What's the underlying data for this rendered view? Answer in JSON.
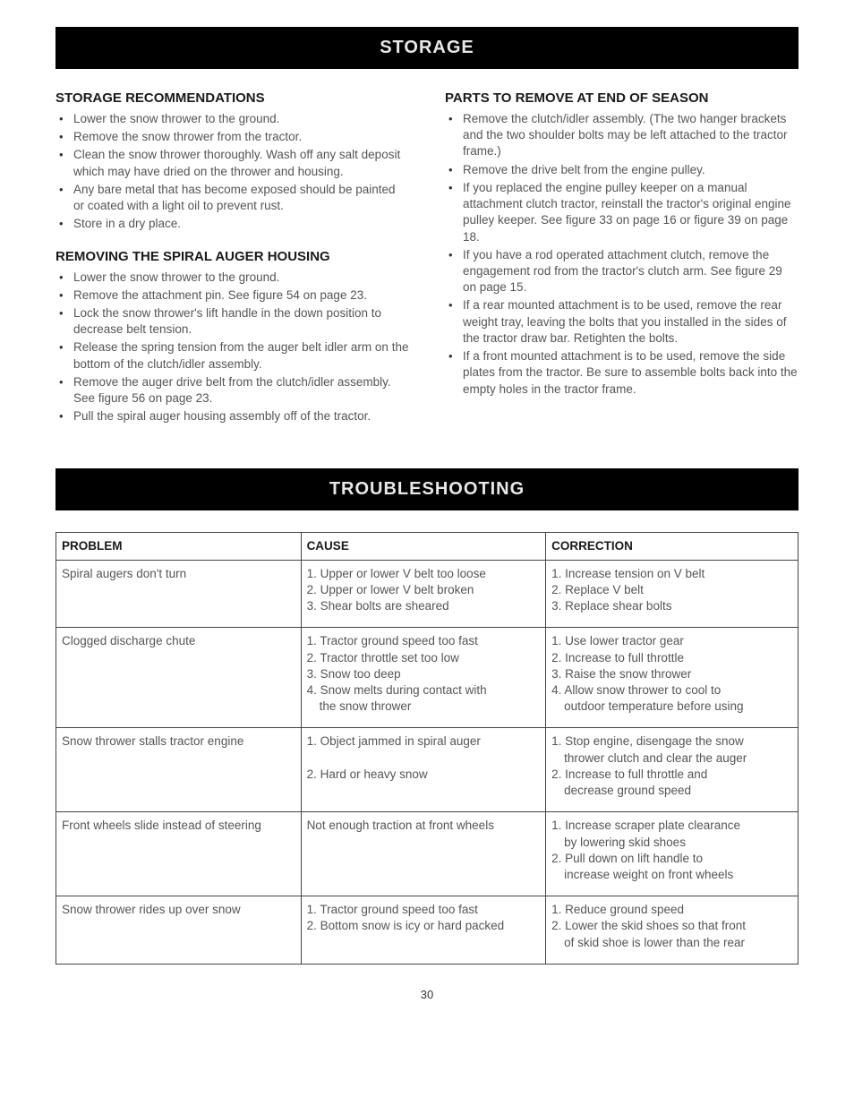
{
  "banner1": "STORAGE",
  "banner2": "TROUBLESHOOTING",
  "page_number": "30",
  "left_column": {
    "sec1": {
      "heading": "STORAGE RECOMMENDATIONS",
      "items": [
        "Lower the snow thrower to the ground.",
        "Remove the snow thrower from the tractor.",
        "Clean the snow thrower thoroughly. Wash off any salt deposit which may have dried on the thrower and housing.",
        "Any bare metal that has become exposed should be painted or coated with a light oil to prevent rust.",
        "Store in a dry place."
      ]
    },
    "sec2": {
      "heading": "REMOVING THE SPIRAL AUGER HOUSING",
      "items": [
        "Lower the snow thrower to the ground.",
        "Remove the attachment pin. See figure 54 on page 23.",
        "Lock the snow thrower's lift handle in the down position to decrease belt tension.",
        "Release the spring tension from the auger belt idler arm on the bottom of the clutch/idler assembly.",
        "Remove the auger drive belt from the clutch/idler assembly. See figure 56 on page 23.",
        "Pull the spiral auger housing assembly off of the tractor."
      ]
    }
  },
  "right_column": {
    "sec1": {
      "heading": "PARTS TO REMOVE AT END OF SEASON",
      "items": [
        "Remove the clutch/idler assembly. (The two hanger brackets and the two shoulder bolts may be left attached to the tractor frame.)",
        "Remove the drive belt from the engine pulley.",
        "If you replaced the engine pulley keeper on a manual attachment clutch tractor, reinstall the tractor's original engine pulley keeper. See figure 33 on page 16 or figure 39 on page 18.",
        "If you have a rod operated attachment clutch, remove the engagement rod from the tractor's clutch arm. See figure 29 on page 15.",
        "If a rear mounted attachment is to be used, remove the rear weight tray, leaving the bolts that you installed in the sides of the tractor draw bar. Retighten the bolts.",
        "If a front mounted attachment is to be used, remove the side plates from the tractor. Be sure to assemble bolts back into the empty holes in the tractor frame."
      ]
    }
  },
  "table": {
    "headers": {
      "problem": "PROBLEM",
      "cause": "CAUSE",
      "correction": "CORRECTION"
    },
    "rows": [
      {
        "problem": [
          "Spiral augers don't turn"
        ],
        "cause": [
          "1. Upper or lower V belt too loose",
          "2. Upper or lower V belt broken",
          "3. Shear bolts are sheared"
        ],
        "correction": [
          "1. Increase tension on V belt",
          "2. Replace V belt",
          "3. Replace shear bolts"
        ]
      },
      {
        "problem": [
          "Clogged discharge chute"
        ],
        "cause": [
          "1. Tractor ground speed too fast",
          "2. Tractor throttle set too low",
          "3. Snow too deep",
          "4. Snow melts during contact with",
          "    the snow thrower"
        ],
        "correction": [
          "1. Use lower tractor gear",
          "2. Increase to full throttle",
          "3. Raise the snow thrower",
          "4. Allow snow thrower to cool to",
          "    outdoor temperature before using"
        ]
      },
      {
        "problem": [
          "Snow thrower stalls tractor engine"
        ],
        "cause": [
          "1. Object jammed in spiral auger",
          "",
          "2. Hard or heavy snow"
        ],
        "correction": [
          "1. Stop engine, disengage the snow",
          "    thrower clutch and clear the auger",
          "2. Increase to full throttle and",
          "    decrease ground speed"
        ]
      },
      {
        "problem": [
          "Front wheels slide instead of steering"
        ],
        "cause": [
          "Not enough traction at front wheels"
        ],
        "correction": [
          "1. Increase scraper plate clearance",
          "    by lowering skid shoes",
          "2. Pull down on lift handle to",
          "    increase weight on front wheels"
        ]
      },
      {
        "problem": [
          "Snow thrower rides up over snow"
        ],
        "cause": [
          "1. Tractor ground speed too fast",
          "2. Bottom snow is icy or hard packed"
        ],
        "correction": [
          "1. Reduce ground speed",
          "2. Lower the skid shoes so that front",
          "    of skid shoe is lower than the rear"
        ]
      }
    ]
  }
}
